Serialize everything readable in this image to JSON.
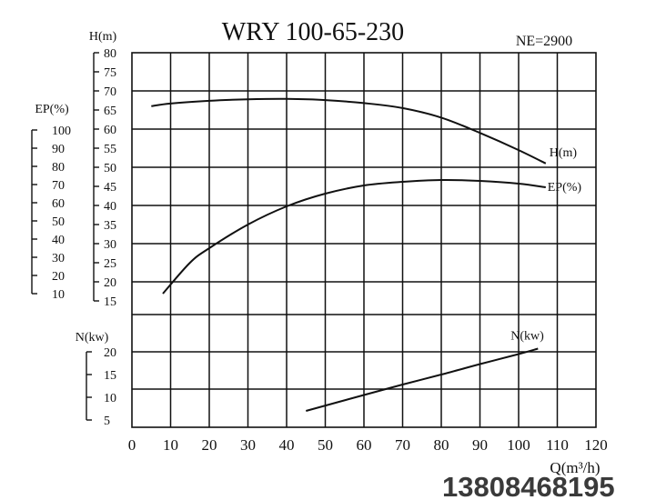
{
  "chart_data": {
    "type": "line",
    "title": "WRY 100-65-230",
    "subtitle": "NE=2900",
    "xlabel": "Q(m³/h)",
    "x_ticks": [
      0,
      10,
      20,
      30,
      40,
      50,
      60,
      70,
      80,
      90,
      100,
      110,
      120
    ],
    "xlim": [
      0,
      120
    ],
    "grid": true,
    "axes": [
      {
        "id": "H",
        "label": "H(m)",
        "ticks": [
          80,
          75,
          70,
          65,
          60,
          55,
          50,
          45,
          40,
          35,
          30,
          25,
          20,
          15
        ],
        "ylim": [
          15,
          80
        ]
      },
      {
        "id": "EP",
        "label": "EP(%)",
        "ticks": [
          100,
          90,
          80,
          70,
          60,
          50,
          40,
          30,
          20,
          10
        ],
        "ylim": [
          10,
          100
        ]
      },
      {
        "id": "N",
        "label": "N(kw)",
        "ticks": [
          20,
          15,
          10,
          5
        ],
        "ylim": [
          5,
          20
        ]
      }
    ],
    "series": [
      {
        "name": "H(m)",
        "axis": "H",
        "x": [
          5,
          10,
          20,
          30,
          40,
          50,
          60,
          70,
          80,
          90,
          100,
          107
        ],
        "y": [
          66,
          66.7,
          67.4,
          67.8,
          67.9,
          67.6,
          66.8,
          65.5,
          63,
          59,
          54.5,
          51
        ]
      },
      {
        "name": "EP(%)",
        "axis": "EP",
        "x": [
          8,
          15,
          20,
          30,
          40,
          50,
          60,
          70,
          80,
          90,
          100,
          107
        ],
        "y": [
          10,
          27,
          35,
          48,
          58,
          65,
          69.5,
          71.5,
          72.5,
          72,
          70.5,
          68.5
        ]
      },
      {
        "name": "N(kw)",
        "axis": "N",
        "x": [
          45,
          60,
          70,
          80,
          90,
          100,
          105
        ],
        "y": [
          7,
          10.5,
          12.8,
          15,
          17.3,
          19.5,
          20.7
        ]
      }
    ]
  },
  "watermark": "13808468195"
}
